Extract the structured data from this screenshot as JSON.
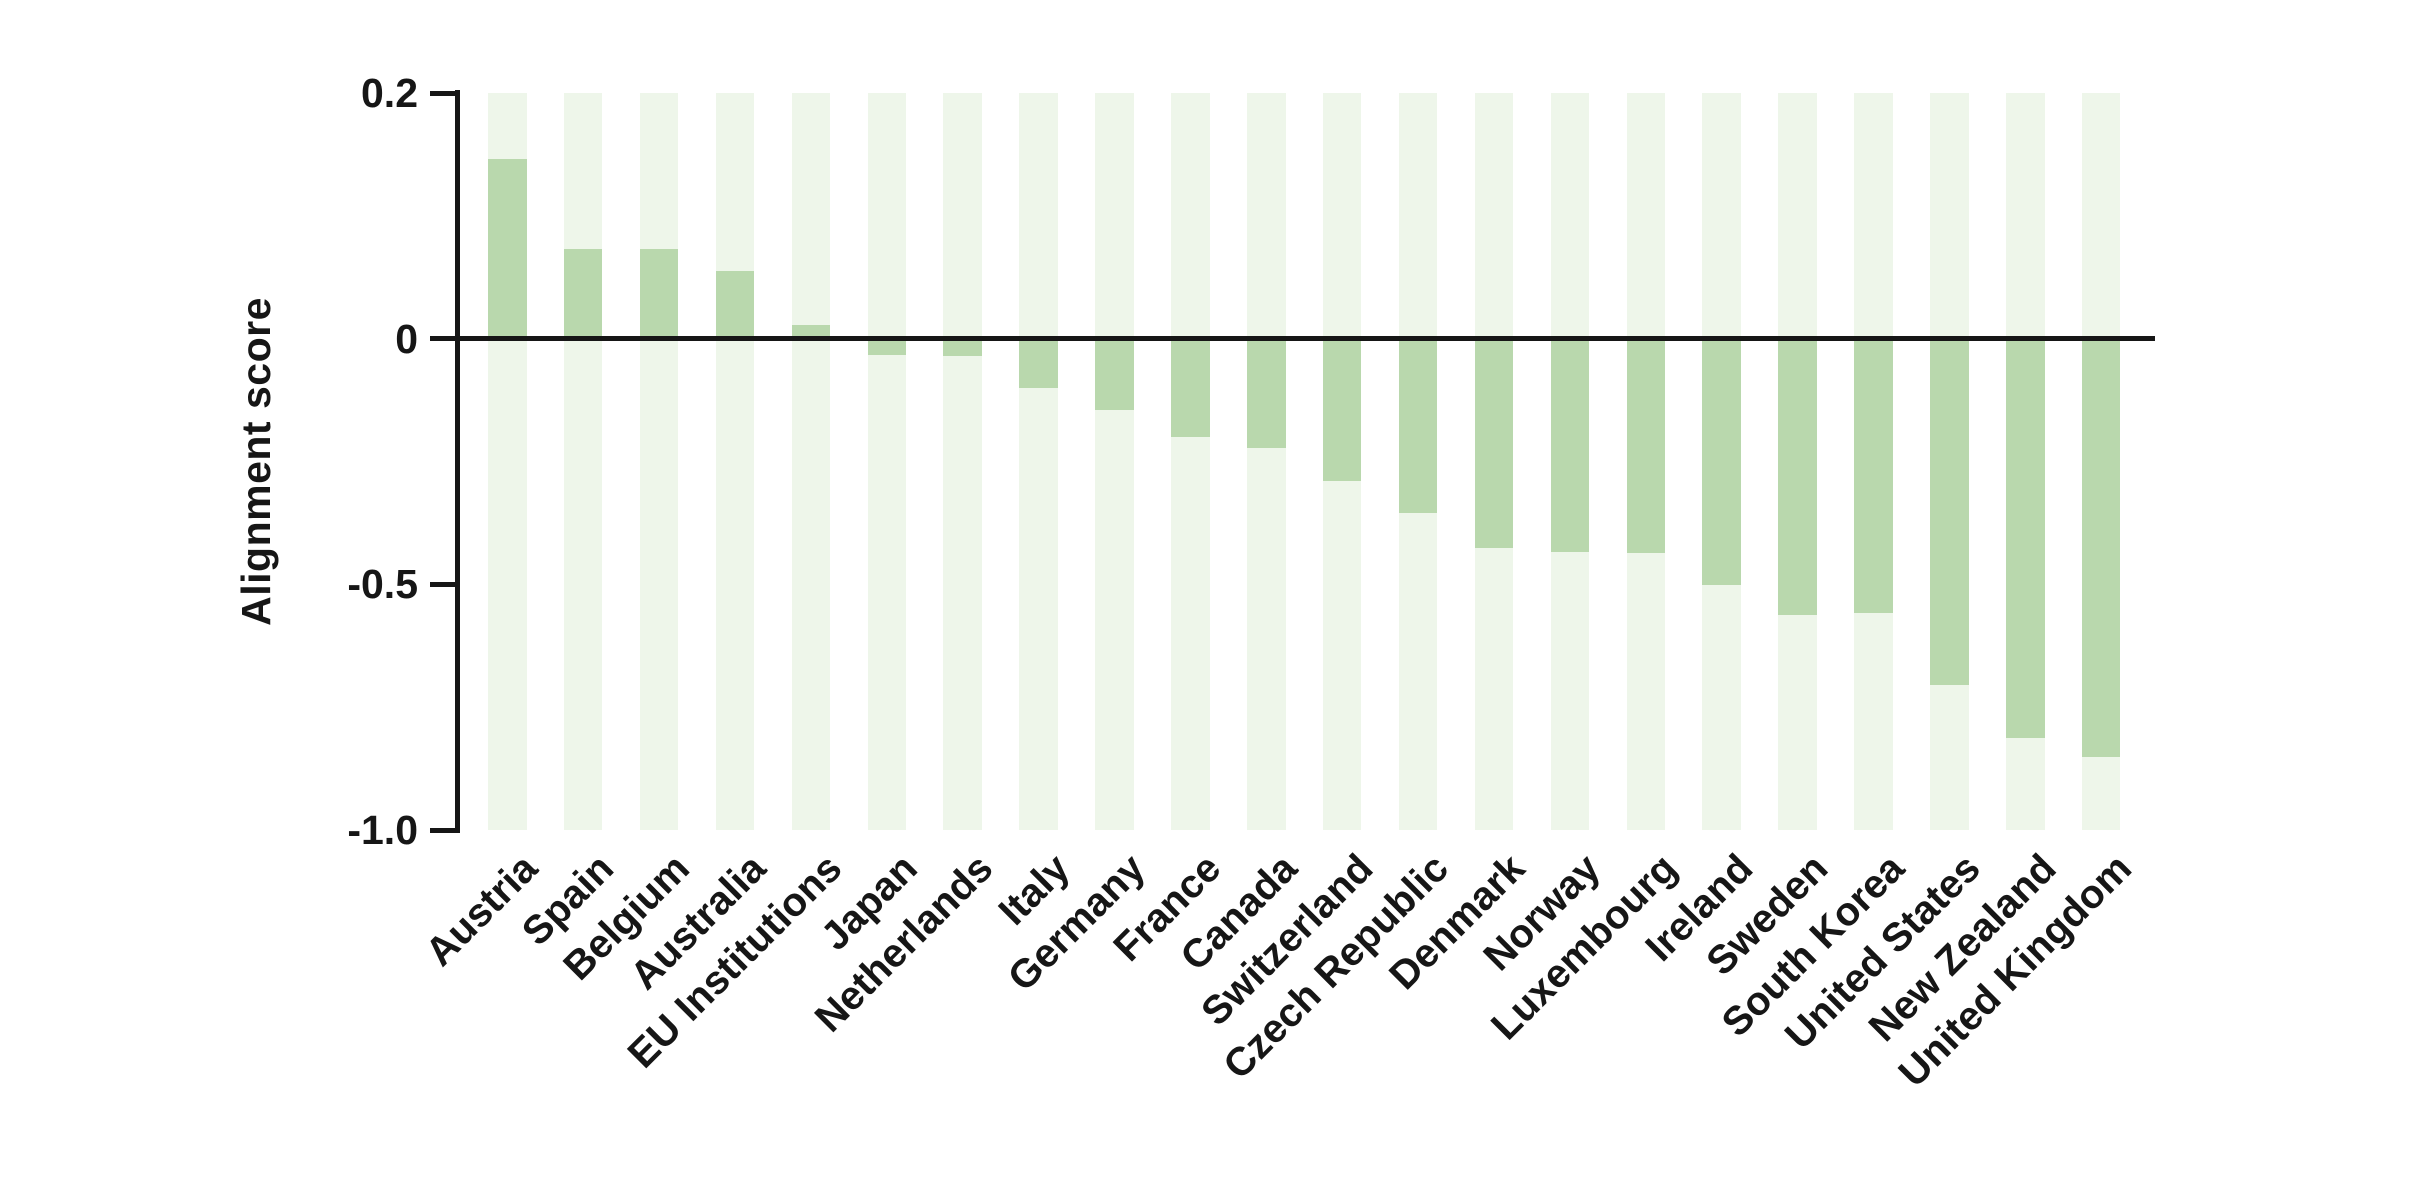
{
  "figure": {
    "background": "#ffffff"
  },
  "chart_data": {
    "type": "bar",
    "title": "",
    "xlabel": "",
    "ylabel": "Alignment score",
    "categories": [
      "Austria",
      "Spain",
      "Belgium",
      "Australia",
      "EU Institutions",
      "Japan",
      "Netherlands",
      "Italy",
      "Germany",
      "France",
      "Canada",
      "Switzerland",
      "Czech Republic",
      "Denmark",
      "Norway",
      "Luxembourg",
      "Ireland",
      "Sweden",
      "South Korea",
      "United States",
      "New Zealand",
      "United Kingdom"
    ],
    "values": [
      0.146,
      0.073,
      0.073,
      0.055,
      0.011,
      -0.034,
      -0.036,
      -0.1,
      -0.146,
      -0.2,
      -0.223,
      -0.29,
      -0.355,
      -0.426,
      -0.434,
      -0.436,
      -0.501,
      -0.563,
      -0.558,
      -0.705,
      -0.813,
      -0.852
    ],
    "ytick_labels": [
      "0.2",
      "0",
      "-0.5",
      "-1.0"
    ],
    "ytick_values": [
      0.2,
      0,
      -0.5,
      -1.0
    ],
    "ylim": [
      0.2,
      -1.0
    ],
    "scale_note": "y ticks are equally spaced (0.2-to-0 segment drawn same height as each 0.5-unit negative segment)",
    "grid": "off",
    "legend": "none",
    "bar_color": "#b9d8ad",
    "bar_background_color": "#eef6ea",
    "axis_color": "#161616",
    "x_tick_rotation_deg": 45
  }
}
